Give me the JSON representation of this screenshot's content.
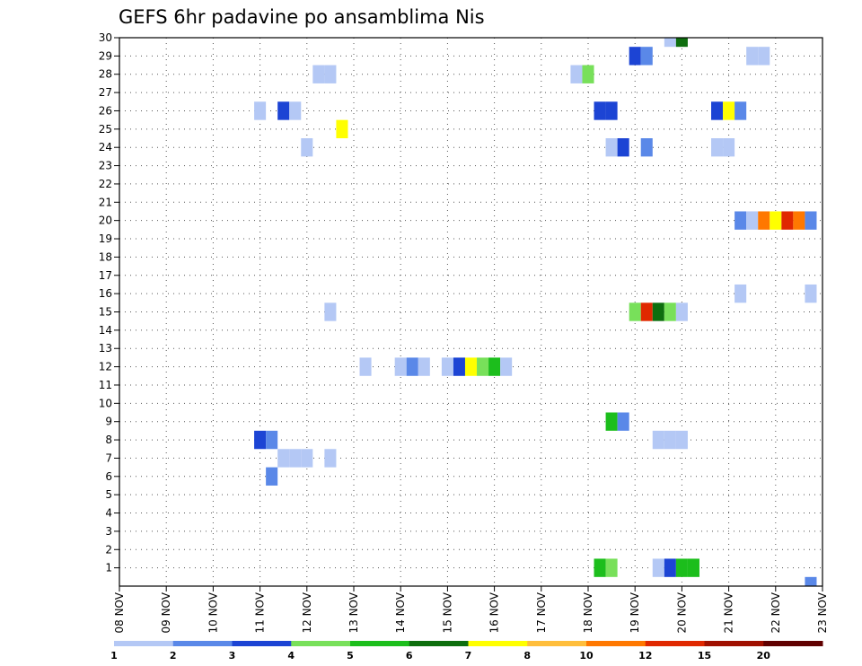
{
  "chart_data": {
    "type": "heatmap",
    "title": "GEFS 6hr padavine po ansamblima Nis",
    "xlabel": "",
    "ylabel": "",
    "x_ticks": [
      "08 NOV",
      "09 NOV",
      "10 NOV",
      "11 NOV",
      "12 NOV",
      "13 NOV",
      "14 NOV",
      "15 NOV",
      "16 NOV",
      "17 NOV",
      "18 NOV",
      "19 NOV",
      "20 NOV",
      "21 NOV",
      "22 NOV",
      "23 NOV"
    ],
    "x_range_days": [
      0,
      15
    ],
    "y_ticks": [
      1,
      2,
      3,
      4,
      5,
      6,
      7,
      8,
      9,
      10,
      11,
      12,
      13,
      14,
      15,
      16,
      17,
      18,
      19,
      20,
      21,
      22,
      23,
      24,
      25,
      26,
      27,
      28,
      29,
      30
    ],
    "y_range": [
      0,
      30
    ],
    "grid": true,
    "colorbar": {
      "levels": [
        "1",
        "2",
        "3",
        "4",
        "5",
        "6",
        "7",
        "8",
        "10",
        "12",
        "15",
        "20"
      ],
      "colors": [
        "#b4c8f5",
        "#5a88e8",
        "#1c44d4",
        "#78e05a",
        "#1cbe1c",
        "#0e6e0e",
        "#ffff00",
        "#ffbe3c",
        "#ff7800",
        "#e02800",
        "#a01000",
        "#600000"
      ]
    },
    "cells_note": "each cell: d = day offset from 08 NOV 00Z (6h steps), m = ensemble member, c = colour class index (0-based into colorbar.colors)",
    "cells": [
      {
        "d": 11.75,
        "m": 30,
        "c": 0
      },
      {
        "d": 12.0,
        "m": 30,
        "c": 5
      },
      {
        "d": 11.0,
        "m": 29,
        "c": 2
      },
      {
        "d": 11.25,
        "m": 29,
        "c": 1
      },
      {
        "d": 13.5,
        "m": 29,
        "c": 0
      },
      {
        "d": 13.75,
        "m": 29,
        "c": 0
      },
      {
        "d": 4.25,
        "m": 28,
        "c": 0
      },
      {
        "d": 4.5,
        "m": 28,
        "c": 0
      },
      {
        "d": 9.75,
        "m": 28,
        "c": 0
      },
      {
        "d": 10.0,
        "m": 28,
        "c": 3
      },
      {
        "d": 3.0,
        "m": 26,
        "c": 0
      },
      {
        "d": 3.5,
        "m": 26,
        "c": 2
      },
      {
        "d": 3.75,
        "m": 26,
        "c": 0
      },
      {
        "d": 10.25,
        "m": 26,
        "c": 2
      },
      {
        "d": 10.5,
        "m": 26,
        "c": 2
      },
      {
        "d": 12.75,
        "m": 26,
        "c": 2
      },
      {
        "d": 13.0,
        "m": 26,
        "c": 6
      },
      {
        "d": 13.25,
        "m": 26,
        "c": 1
      },
      {
        "d": 4.75,
        "m": 25,
        "c": 6
      },
      {
        "d": 4.0,
        "m": 24,
        "c": 0
      },
      {
        "d": 10.5,
        "m": 24,
        "c": 0
      },
      {
        "d": 10.75,
        "m": 24,
        "c": 2
      },
      {
        "d": 11.25,
        "m": 24,
        "c": 1
      },
      {
        "d": 12.75,
        "m": 24,
        "c": 0
      },
      {
        "d": 13.0,
        "m": 24,
        "c": 0
      },
      {
        "d": 13.25,
        "m": 20,
        "c": 1
      },
      {
        "d": 13.5,
        "m": 20,
        "c": 0
      },
      {
        "d": 13.75,
        "m": 20,
        "c": 8
      },
      {
        "d": 14.0,
        "m": 20,
        "c": 6
      },
      {
        "d": 14.25,
        "m": 20,
        "c": 9
      },
      {
        "d": 14.5,
        "m": 20,
        "c": 8
      },
      {
        "d": 14.75,
        "m": 20,
        "c": 1
      },
      {
        "d": 13.25,
        "m": 16,
        "c": 0
      },
      {
        "d": 14.75,
        "m": 16,
        "c": 0
      },
      {
        "d": 4.5,
        "m": 15,
        "c": 0
      },
      {
        "d": 11.0,
        "m": 15,
        "c": 3
      },
      {
        "d": 11.25,
        "m": 15,
        "c": 9
      },
      {
        "d": 11.5,
        "m": 15,
        "c": 5
      },
      {
        "d": 11.75,
        "m": 15,
        "c": 3
      },
      {
        "d": 12.0,
        "m": 15,
        "c": 0
      },
      {
        "d": 5.25,
        "m": 12,
        "c": 0
      },
      {
        "d": 6.0,
        "m": 12,
        "c": 0
      },
      {
        "d": 6.25,
        "m": 12,
        "c": 1
      },
      {
        "d": 6.5,
        "m": 12,
        "c": 0
      },
      {
        "d": 7.0,
        "m": 12,
        "c": 0
      },
      {
        "d": 7.25,
        "m": 12,
        "c": 2
      },
      {
        "d": 7.5,
        "m": 12,
        "c": 6
      },
      {
        "d": 7.75,
        "m": 12,
        "c": 3
      },
      {
        "d": 8.0,
        "m": 12,
        "c": 4
      },
      {
        "d": 8.25,
        "m": 12,
        "c": 0
      },
      {
        "d": 10.5,
        "m": 9,
        "c": 4
      },
      {
        "d": 10.75,
        "m": 9,
        "c": 1
      },
      {
        "d": 3.0,
        "m": 8,
        "c": 2
      },
      {
        "d": 3.25,
        "m": 8,
        "c": 1
      },
      {
        "d": 11.5,
        "m": 8,
        "c": 0
      },
      {
        "d": 11.75,
        "m": 8,
        "c": 0
      },
      {
        "d": 12.0,
        "m": 8,
        "c": 0
      },
      {
        "d": 3.5,
        "m": 7,
        "c": 0
      },
      {
        "d": 3.75,
        "m": 7,
        "c": 0
      },
      {
        "d": 4.0,
        "m": 7,
        "c": 0
      },
      {
        "d": 4.5,
        "m": 7,
        "c": 0
      },
      {
        "d": 3.25,
        "m": 6,
        "c": 1
      },
      {
        "d": 10.25,
        "m": 1,
        "c": 4
      },
      {
        "d": 10.5,
        "m": 1,
        "c": 3
      },
      {
        "d": 11.5,
        "m": 1,
        "c": 0
      },
      {
        "d": 11.75,
        "m": 1,
        "c": 2
      },
      {
        "d": 12.0,
        "m": 1,
        "c": 4
      },
      {
        "d": 12.25,
        "m": 1,
        "c": 4
      },
      {
        "d": 14.75,
        "m": 0,
        "c": 1
      }
    ]
  }
}
